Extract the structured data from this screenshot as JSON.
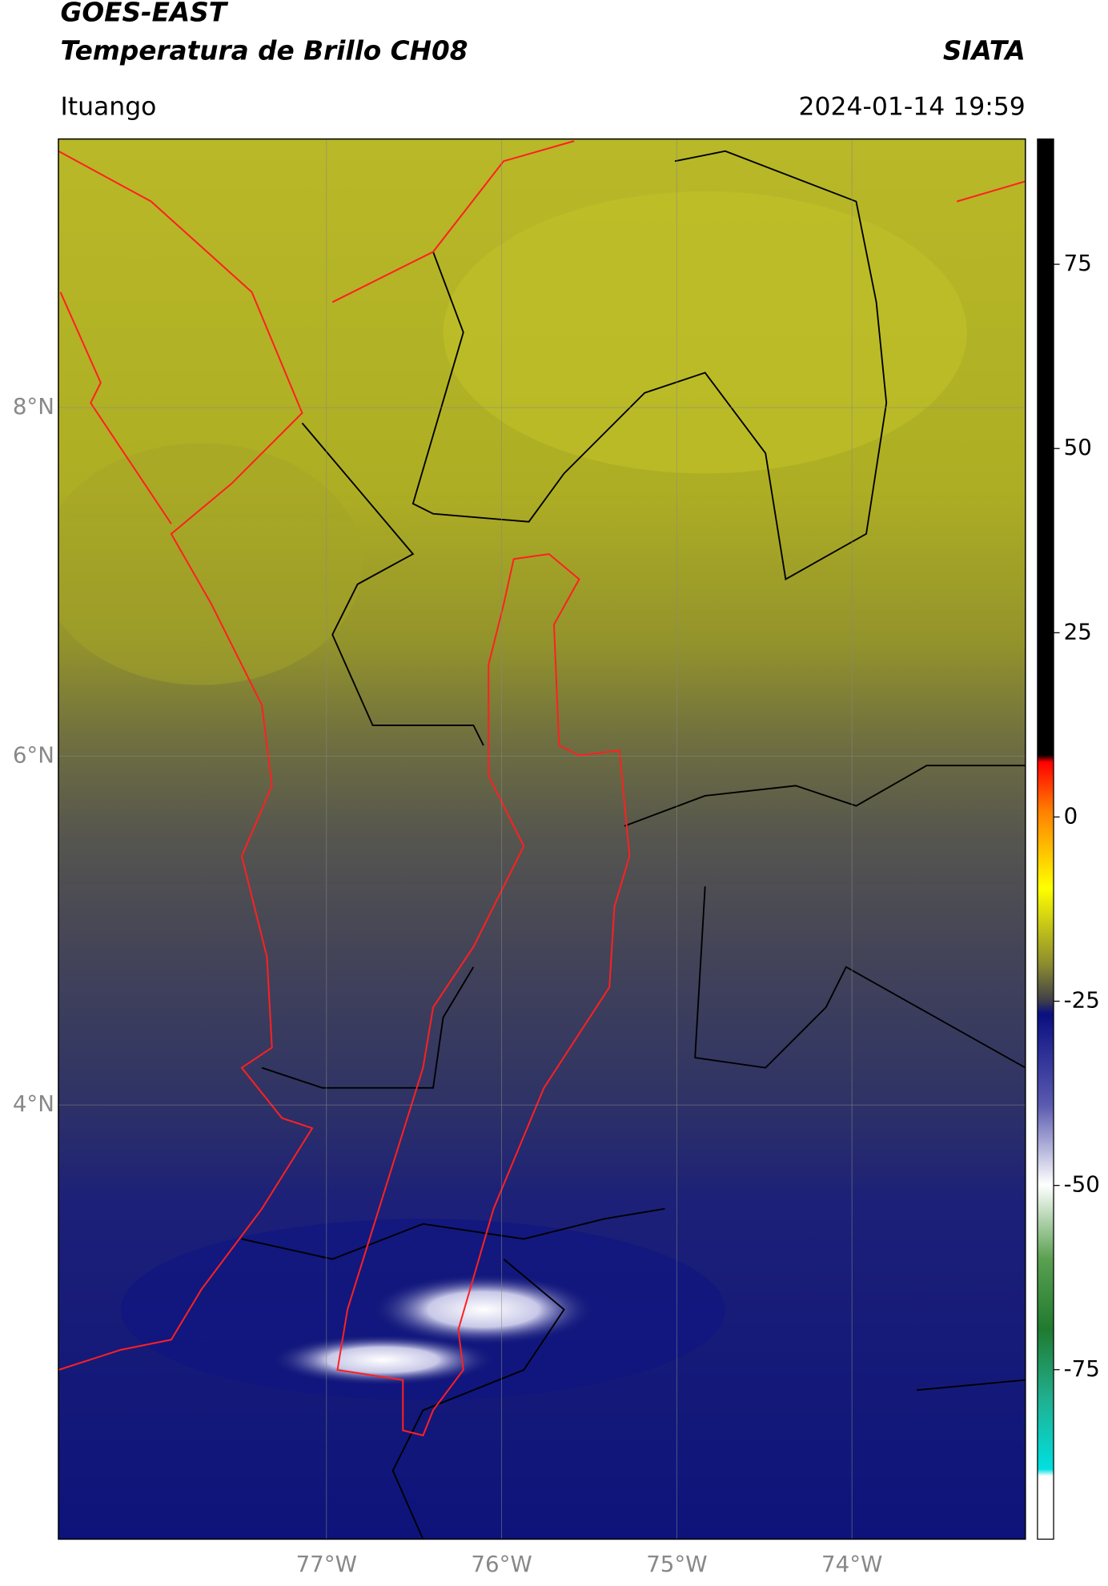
{
  "header": {
    "title": "GOES-EAST",
    "subtitle": "Temperatura de Brillo CH08",
    "brand": "SIATA",
    "location": "Ituango",
    "datetime": "2024-01-14 19:59"
  },
  "map": {
    "xlim": [
      -78.53,
      -73.01
    ],
    "ylim": [
      1.51,
      9.54
    ],
    "xticks": [
      {
        "value": -77,
        "label": "77°W"
      },
      {
        "value": -76,
        "label": "76°W"
      },
      {
        "value": -75,
        "label": "75°W"
      },
      {
        "value": -74,
        "label": "74°W"
      }
    ],
    "yticks": [
      {
        "value": 8,
        "label": "8°N"
      },
      {
        "value": 6,
        "label": "6°N"
      },
      {
        "value": 4,
        "label": "4°N"
      }
    ],
    "grid": true
  },
  "colorbar": {
    "lim": [
      -98,
      92
    ],
    "ticks": [
      75,
      50,
      25,
      0,
      -25,
      -50,
      -75
    ]
  }
}
